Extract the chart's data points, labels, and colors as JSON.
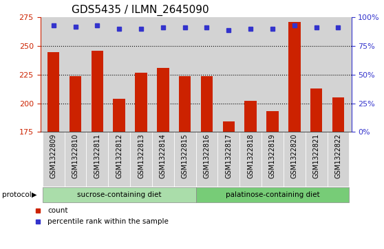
{
  "title": "GDS5435 / ILMN_2645090",
  "samples": [
    "GSM1322809",
    "GSM1322810",
    "GSM1322811",
    "GSM1322812",
    "GSM1322813",
    "GSM1322814",
    "GSM1322815",
    "GSM1322816",
    "GSM1322817",
    "GSM1322818",
    "GSM1322819",
    "GSM1322820",
    "GSM1322821",
    "GSM1322822"
  ],
  "counts": [
    245,
    224,
    246,
    204,
    227,
    231,
    224,
    224,
    184,
    202,
    193,
    271,
    213,
    205
  ],
  "percentiles": [
    93,
    92,
    93,
    90,
    90,
    91,
    91,
    91,
    89,
    90,
    90,
    93,
    91,
    91
  ],
  "ylim_left": [
    175,
    275
  ],
  "ylim_right": [
    0,
    100
  ],
  "yticks_left": [
    175,
    200,
    225,
    250,
    275
  ],
  "yticks_right": [
    0,
    25,
    50,
    75,
    100
  ],
  "bar_color": "#cc2200",
  "dot_color": "#3333cc",
  "bg_color": "#d3d3d3",
  "sucrose_count": 7,
  "palatinose_count": 7,
  "sucrose_label": "sucrose-containing diet",
  "palatinose_label": "palatinose-containing diet",
  "sucrose_color": "#aaddaa",
  "palatinose_color": "#77cc77",
  "protocol_label": "protocol",
  "legend_count": "count",
  "legend_percentile": "percentile rank within the sample",
  "title_fontsize": 11,
  "tick_fontsize": 8,
  "sample_fontsize": 7
}
